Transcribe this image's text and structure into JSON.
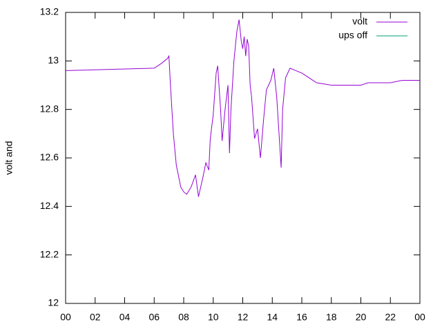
{
  "chart_data": {
    "type": "line",
    "ylabel": "volt and",
    "x": [
      0,
      6.0,
      6.5,
      6.9,
      7.0,
      7.1,
      7.3,
      7.5,
      7.8,
      8.0,
      8.2,
      8.5,
      8.8,
      9.0,
      9.3,
      9.5,
      9.7,
      9.8,
      10.0,
      10.2,
      10.3,
      10.5,
      10.6,
      10.8,
      11.0,
      11.1,
      11.2,
      11.4,
      11.6,
      11.75,
      11.9,
      12.0,
      12.1,
      12.2,
      12.3,
      12.4,
      12.5,
      12.6,
      12.8,
      13.0,
      13.2,
      13.4,
      13.6,
      13.9,
      14.1,
      14.3,
      14.5,
      14.6,
      14.7,
      14.9,
      15.2,
      15.6,
      16.0,
      16.5,
      17.0,
      18.0,
      19.0,
      20.0,
      20.5,
      21.0,
      22.0,
      22.8,
      24.0
    ],
    "series": [
      {
        "name": "volt",
        "color": "#9400d3",
        "values": [
          12.96,
          12.97,
          12.99,
          13.01,
          13.02,
          12.9,
          12.7,
          12.57,
          12.48,
          12.46,
          12.45,
          12.48,
          12.53,
          12.44,
          12.52,
          12.58,
          12.55,
          12.68,
          12.78,
          12.95,
          12.98,
          12.8,
          12.67,
          12.8,
          12.9,
          12.62,
          12.8,
          13.0,
          13.12,
          13.17,
          13.08,
          13.05,
          13.1,
          13.02,
          13.09,
          13.06,
          12.9,
          12.85,
          12.68,
          12.72,
          12.6,
          12.75,
          12.88,
          12.92,
          12.97,
          12.85,
          12.66,
          12.56,
          12.8,
          12.93,
          12.97,
          12.96,
          12.95,
          12.93,
          12.91,
          12.9,
          12.9,
          12.9,
          12.91,
          12.91,
          12.91,
          12.92,
          12.92
        ]
      },
      {
        "name": "ups off",
        "color": "#009e73",
        "values": [
          null,
          null,
          null,
          null,
          null,
          null,
          null,
          null,
          null,
          null,
          null,
          null,
          null,
          null,
          null,
          null,
          null,
          null,
          null,
          null,
          null,
          null,
          null,
          null,
          null,
          null,
          null,
          null,
          null,
          null,
          null,
          null,
          null,
          null,
          null,
          null,
          null,
          null,
          null,
          null,
          null,
          null,
          null,
          null,
          null,
          null,
          null,
          null,
          null,
          null,
          null,
          null,
          null,
          null,
          null,
          null,
          null,
          null,
          null,
          null,
          null,
          null,
          null
        ]
      }
    ],
    "xlim": [
      0,
      24
    ],
    "xticks": [
      {
        "value": 0,
        "label": "00"
      },
      {
        "value": 2,
        "label": "02"
      },
      {
        "value": 4,
        "label": "04"
      },
      {
        "value": 6,
        "label": "06"
      },
      {
        "value": 8,
        "label": "08"
      },
      10,
      12,
      14,
      16,
      18,
      20,
      22,
      {
        "value": 24,
        "label": "00"
      }
    ],
    "ylim": [
      12,
      13.2
    ],
    "yticks": [
      12,
      12.2,
      12.4,
      12.6,
      12.8,
      13,
      13.2
    ],
    "legend": "upper right"
  }
}
